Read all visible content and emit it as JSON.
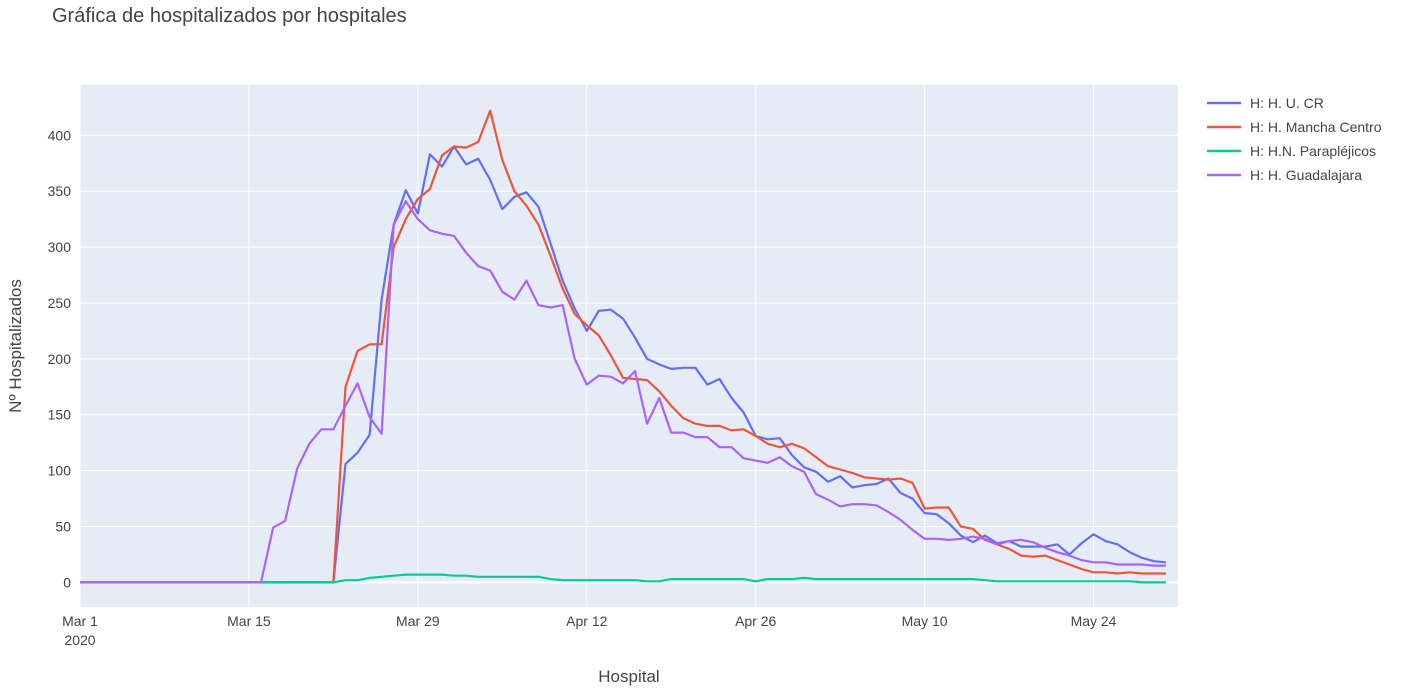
{
  "chart_data": {
    "type": "line",
    "title": "Gráfica de hospitalizados por hospitales",
    "xlabel": "Hospital",
    "ylabel": "Nº Hospitalizados",
    "x_start": "2020-03-01",
    "x_end": "2020-05-31",
    "x_ticks": [
      {
        "date": "2020-03-01",
        "label": "Mar 1",
        "sub": "2020"
      },
      {
        "date": "2020-03-15",
        "label": "Mar 15"
      },
      {
        "date": "2020-03-29",
        "label": "Mar 29"
      },
      {
        "date": "2020-04-12",
        "label": "Apr 12"
      },
      {
        "date": "2020-04-26",
        "label": "Apr 26"
      },
      {
        "date": "2020-05-10",
        "label": "May 10"
      },
      {
        "date": "2020-05-24",
        "label": "May 24"
      }
    ],
    "y_ticks": [
      0,
      50,
      100,
      150,
      200,
      250,
      300,
      350,
      400
    ],
    "ylim": [
      -22,
      445
    ],
    "grid": true,
    "legend_position": "right",
    "series": [
      {
        "name": "H: H. U. CR",
        "color": "#636efa",
        "points": [
          [
            "2020-03-01",
            0
          ],
          [
            "2020-03-15",
            0
          ],
          [
            "2020-03-22",
            0
          ],
          [
            "2020-03-23",
            106
          ],
          [
            "2020-03-24",
            116
          ],
          [
            "2020-03-25",
            132
          ],
          [
            "2020-03-26",
            253
          ],
          [
            "2020-03-27",
            320
          ],
          [
            "2020-03-28",
            351
          ],
          [
            "2020-03-29",
            330
          ],
          [
            "2020-03-30",
            383
          ],
          [
            "2020-03-31",
            372
          ],
          [
            "2020-04-01",
            390
          ],
          [
            "2020-04-02",
            374
          ],
          [
            "2020-04-03",
            379
          ],
          [
            "2020-04-04",
            360
          ],
          [
            "2020-04-05",
            334
          ],
          [
            "2020-04-06",
            345
          ],
          [
            "2020-04-07",
            349
          ],
          [
            "2020-04-08",
            336
          ],
          [
            "2020-04-09",
            303
          ],
          [
            "2020-04-10",
            270
          ],
          [
            "2020-04-11",
            245
          ],
          [
            "2020-04-12",
            225
          ],
          [
            "2020-04-13",
            243
          ],
          [
            "2020-04-14",
            244
          ],
          [
            "2020-04-15",
            236
          ],
          [
            "2020-04-16",
            219
          ],
          [
            "2020-04-17",
            200
          ],
          [
            "2020-04-18",
            195
          ],
          [
            "2020-04-19",
            191
          ],
          [
            "2020-04-20",
            192
          ],
          [
            "2020-04-21",
            192
          ],
          [
            "2020-04-22",
            177
          ],
          [
            "2020-04-23",
            182
          ],
          [
            "2020-04-24",
            165
          ],
          [
            "2020-04-25",
            152
          ],
          [
            "2020-04-26",
            131
          ],
          [
            "2020-04-27",
            128
          ],
          [
            "2020-04-28",
            129
          ],
          [
            "2020-04-29",
            114
          ],
          [
            "2020-04-30",
            103
          ],
          [
            "2020-05-01",
            99
          ],
          [
            "2020-05-02",
            90
          ],
          [
            "2020-05-03",
            95
          ],
          [
            "2020-05-04",
            85
          ],
          [
            "2020-05-05",
            87
          ],
          [
            "2020-05-06",
            88
          ],
          [
            "2020-05-07",
            93
          ],
          [
            "2020-05-08",
            80
          ],
          [
            "2020-05-09",
            75
          ],
          [
            "2020-05-10",
            62
          ],
          [
            "2020-05-11",
            61
          ],
          [
            "2020-05-12",
            53
          ],
          [
            "2020-05-13",
            42
          ],
          [
            "2020-05-14",
            36
          ],
          [
            "2020-05-15",
            42
          ],
          [
            "2020-05-16",
            35
          ],
          [
            "2020-05-17",
            37
          ],
          [
            "2020-05-18",
            32
          ],
          [
            "2020-05-19",
            32
          ],
          [
            "2020-05-20",
            32
          ],
          [
            "2020-05-21",
            34
          ],
          [
            "2020-05-22",
            25
          ],
          [
            "2020-05-23",
            35
          ],
          [
            "2020-05-24",
            43
          ],
          [
            "2020-05-25",
            37
          ],
          [
            "2020-05-26",
            34
          ],
          [
            "2020-05-27",
            27
          ],
          [
            "2020-05-28",
            22
          ],
          [
            "2020-05-29",
            19
          ],
          [
            "2020-05-30",
            18
          ]
        ]
      },
      {
        "name": "H: H. Mancha Centro",
        "color": "#ef553b",
        "points": [
          [
            "2020-03-01",
            0
          ],
          [
            "2020-03-22",
            0
          ],
          [
            "2020-03-23",
            175
          ],
          [
            "2020-03-24",
            207
          ],
          [
            "2020-03-25",
            213
          ],
          [
            "2020-03-26",
            213
          ],
          [
            "2020-03-27",
            300
          ],
          [
            "2020-03-28",
            325
          ],
          [
            "2020-03-29",
            343
          ],
          [
            "2020-03-30",
            352
          ],
          [
            "2020-03-31",
            382
          ],
          [
            "2020-04-01",
            390
          ],
          [
            "2020-04-02",
            389
          ],
          [
            "2020-04-03",
            394
          ],
          [
            "2020-04-04",
            422
          ],
          [
            "2020-04-05",
            378
          ],
          [
            "2020-04-06",
            350
          ],
          [
            "2020-04-07",
            337
          ],
          [
            "2020-04-08",
            320
          ],
          [
            "2020-04-09",
            292
          ],
          [
            "2020-04-10",
            263
          ],
          [
            "2020-04-11",
            240
          ],
          [
            "2020-04-12",
            230
          ],
          [
            "2020-04-13",
            221
          ],
          [
            "2020-04-14",
            203
          ],
          [
            "2020-04-15",
            183
          ],
          [
            "2020-04-16",
            182
          ],
          [
            "2020-04-17",
            181
          ],
          [
            "2020-04-18",
            171
          ],
          [
            "2020-04-19",
            158
          ],
          [
            "2020-04-20",
            147
          ],
          [
            "2020-04-21",
            142
          ],
          [
            "2020-04-22",
            140
          ],
          [
            "2020-04-23",
            140
          ],
          [
            "2020-04-24",
            136
          ],
          [
            "2020-04-25",
            137
          ],
          [
            "2020-04-26",
            131
          ],
          [
            "2020-04-27",
            124
          ],
          [
            "2020-04-28",
            121
          ],
          [
            "2020-04-29",
            124
          ],
          [
            "2020-04-30",
            120
          ],
          [
            "2020-05-01",
            112
          ],
          [
            "2020-05-02",
            104
          ],
          [
            "2020-05-03",
            101
          ],
          [
            "2020-05-04",
            98
          ],
          [
            "2020-05-05",
            94
          ],
          [
            "2020-05-06",
            93
          ],
          [
            "2020-05-07",
            92
          ],
          [
            "2020-05-08",
            93
          ],
          [
            "2020-05-09",
            89
          ],
          [
            "2020-05-10",
            66
          ],
          [
            "2020-05-11",
            67
          ],
          [
            "2020-05-12",
            67
          ],
          [
            "2020-05-13",
            50
          ],
          [
            "2020-05-14",
            48
          ],
          [
            "2020-05-15",
            38
          ],
          [
            "2020-05-16",
            34
          ],
          [
            "2020-05-17",
            30
          ],
          [
            "2020-05-18",
            24
          ],
          [
            "2020-05-19",
            23
          ],
          [
            "2020-05-20",
            24
          ],
          [
            "2020-05-21",
            20
          ],
          [
            "2020-05-22",
            16
          ],
          [
            "2020-05-23",
            12
          ],
          [
            "2020-05-24",
            9
          ],
          [
            "2020-05-25",
            9
          ],
          [
            "2020-05-26",
            8
          ],
          [
            "2020-05-27",
            9
          ],
          [
            "2020-05-28",
            8
          ],
          [
            "2020-05-29",
            8
          ],
          [
            "2020-05-30",
            8
          ]
        ]
      },
      {
        "name": "H: H.N. Parapléjicos",
        "color": "#00cc96",
        "points": [
          [
            "2020-03-01",
            0
          ],
          [
            "2020-03-22",
            0
          ],
          [
            "2020-03-23",
            2
          ],
          [
            "2020-03-24",
            2
          ],
          [
            "2020-03-25",
            4
          ],
          [
            "2020-03-26",
            5
          ],
          [
            "2020-03-27",
            6
          ],
          [
            "2020-03-28",
            7
          ],
          [
            "2020-03-29",
            7
          ],
          [
            "2020-03-30",
            7
          ],
          [
            "2020-03-31",
            7
          ],
          [
            "2020-04-01",
            6
          ],
          [
            "2020-04-02",
            6
          ],
          [
            "2020-04-03",
            5
          ],
          [
            "2020-04-04",
            5
          ],
          [
            "2020-04-08",
            5
          ],
          [
            "2020-04-09",
            3
          ],
          [
            "2020-04-10",
            2
          ],
          [
            "2020-04-16",
            2
          ],
          [
            "2020-04-17",
            1
          ],
          [
            "2020-04-18",
            1
          ],
          [
            "2020-04-19",
            3
          ],
          [
            "2020-04-25",
            3
          ],
          [
            "2020-04-26",
            1
          ],
          [
            "2020-04-27",
            3
          ],
          [
            "2020-04-29",
            3
          ],
          [
            "2020-04-30",
            4
          ],
          [
            "2020-05-01",
            3
          ],
          [
            "2020-05-14",
            3
          ],
          [
            "2020-05-15",
            2
          ],
          [
            "2020-05-16",
            1
          ],
          [
            "2020-05-27",
            1
          ],
          [
            "2020-05-28",
            0
          ],
          [
            "2020-05-30",
            0
          ]
        ]
      },
      {
        "name": "H: H. Guadalajara",
        "color": "#ab63fa",
        "points": [
          [
            "2020-03-01",
            0
          ],
          [
            "2020-03-16",
            0
          ],
          [
            "2020-03-17",
            49
          ],
          [
            "2020-03-18",
            55
          ],
          [
            "2020-03-19",
            102
          ],
          [
            "2020-03-20",
            124
          ],
          [
            "2020-03-21",
            137
          ],
          [
            "2020-03-22",
            137
          ],
          [
            "2020-03-23",
            158
          ],
          [
            "2020-03-24",
            178
          ],
          [
            "2020-03-25",
            148
          ],
          [
            "2020-03-26",
            133
          ],
          [
            "2020-03-27",
            320
          ],
          [
            "2020-03-28",
            341
          ],
          [
            "2020-03-29",
            325
          ],
          [
            "2020-03-30",
            315
          ],
          [
            "2020-03-31",
            312
          ],
          [
            "2020-04-01",
            310
          ],
          [
            "2020-04-02",
            295
          ],
          [
            "2020-04-03",
            283
          ],
          [
            "2020-04-04",
            279
          ],
          [
            "2020-04-05",
            260
          ],
          [
            "2020-04-06",
            253
          ],
          [
            "2020-04-07",
            270
          ],
          [
            "2020-04-08",
            248
          ],
          [
            "2020-04-09",
            246
          ],
          [
            "2020-04-10",
            248
          ],
          [
            "2020-04-11",
            200
          ],
          [
            "2020-04-12",
            177
          ],
          [
            "2020-04-13",
            185
          ],
          [
            "2020-04-14",
            184
          ],
          [
            "2020-04-15",
            178
          ],
          [
            "2020-04-16",
            189
          ],
          [
            "2020-04-17",
            142
          ],
          [
            "2020-04-18",
            165
          ],
          [
            "2020-04-19",
            134
          ],
          [
            "2020-04-20",
            134
          ],
          [
            "2020-04-21",
            130
          ],
          [
            "2020-04-22",
            130
          ],
          [
            "2020-04-23",
            121
          ],
          [
            "2020-04-24",
            121
          ],
          [
            "2020-04-25",
            111
          ],
          [
            "2020-04-26",
            109
          ],
          [
            "2020-04-27",
            107
          ],
          [
            "2020-04-28",
            112
          ],
          [
            "2020-04-29",
            104
          ],
          [
            "2020-04-30",
            99
          ],
          [
            "2020-05-01",
            79
          ],
          [
            "2020-05-02",
            74
          ],
          [
            "2020-05-03",
            68
          ],
          [
            "2020-05-04",
            70
          ],
          [
            "2020-05-05",
            70
          ],
          [
            "2020-05-06",
            69
          ],
          [
            "2020-05-07",
            63
          ],
          [
            "2020-05-08",
            56
          ],
          [
            "2020-05-09",
            47
          ],
          [
            "2020-05-10",
            39
          ],
          [
            "2020-05-11",
            39
          ],
          [
            "2020-05-12",
            38
          ],
          [
            "2020-05-13",
            39
          ],
          [
            "2020-05-14",
            41
          ],
          [
            "2020-05-15",
            39
          ],
          [
            "2020-05-16",
            34
          ],
          [
            "2020-05-17",
            37
          ],
          [
            "2020-05-18",
            38
          ],
          [
            "2020-05-19",
            36
          ],
          [
            "2020-05-20",
            31
          ],
          [
            "2020-05-21",
            27
          ],
          [
            "2020-05-22",
            24
          ],
          [
            "2020-05-23",
            20
          ],
          [
            "2020-05-24",
            18
          ],
          [
            "2020-05-25",
            18
          ],
          [
            "2020-05-26",
            16
          ],
          [
            "2020-05-27",
            16
          ],
          [
            "2020-05-28",
            16
          ],
          [
            "2020-05-29",
            15
          ],
          [
            "2020-05-30",
            15
          ]
        ]
      }
    ]
  }
}
